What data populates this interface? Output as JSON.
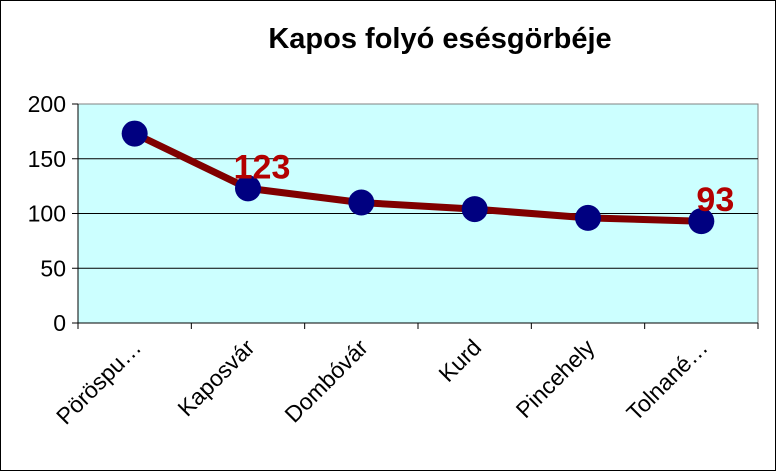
{
  "chart_data": {
    "type": "line",
    "title": "Kapos folyó esésgörbéje",
    "categories": [
      "Pöröspu…",
      "Kaposvár",
      "Dombóvár",
      "Kurd",
      "Pincehely",
      "Tolnané…"
    ],
    "series": [
      {
        "values": [
          173,
          123,
          110,
          104,
          96,
          93
        ]
      }
    ],
    "data_labels": [
      {
        "index": 1,
        "text": "123"
      },
      {
        "index": 5,
        "text": "93"
      }
    ],
    "ylim": [
      0,
      200
    ],
    "yticks": [
      "0",
      "50",
      "100",
      "150",
      "200"
    ],
    "grid": true,
    "legend": "none",
    "colors": {
      "plot_background": "#ccffff",
      "line": "#800000",
      "marker": "#000080",
      "data_label": "#b30000"
    }
  }
}
